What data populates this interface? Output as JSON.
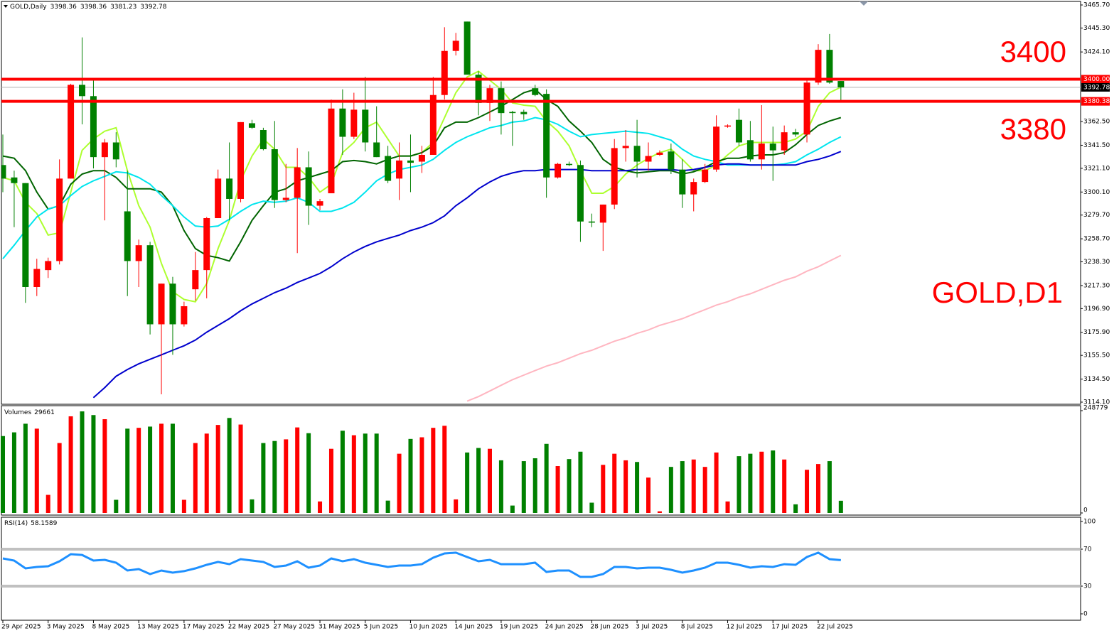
{
  "chart_data": [
    {
      "type": "candlestick",
      "title": "GOLD,Daily",
      "categories": [
        "29 Apr 2025",
        null,
        null,
        null,
        "3 May 2025",
        null,
        null,
        null,
        "8 May 2025",
        null,
        null,
        null,
        "13 May 2025",
        null,
        null,
        null,
        "17 May 2025",
        null,
        null,
        null,
        "22 May 2025",
        null,
        null,
        null,
        "27 May 2025",
        null,
        null,
        null,
        "31 May 2025",
        null,
        null,
        null,
        "5 Jun 2025",
        null,
        null,
        null,
        "10 Jun 2025",
        null,
        null,
        null,
        "14 Jun 2025",
        null,
        null,
        null,
        "19 Jun 2025",
        null,
        null,
        null,
        "24 Jun 2025",
        null,
        null,
        null,
        "28 Jun 2025",
        null,
        null,
        null,
        "3 Jul 2025",
        null,
        null,
        null,
        "8 Jul 2025",
        null,
        null,
        null,
        "12 Jul 2025",
        null,
        null,
        null,
        "17 Jul 2025",
        null,
        null,
        null,
        "22 Jul 2025",
        null,
        null
      ],
      "open": [
        3324,
        3313,
        3308,
        3216,
        3231,
        3239,
        3312,
        3395,
        3385,
        3331,
        3344,
        3283,
        3239,
        3253,
        3183,
        3219,
        3183,
        3214,
        3231,
        3277,
        3312,
        3294,
        3361,
        3355,
        3338,
        3293,
        3295,
        3322,
        3288,
        3299,
        3374,
        3349,
        3373,
        3344,
        3332,
        3312,
        3328,
        3327,
        3333,
        3386,
        3425,
        3451,
        3404,
        3379,
        3392,
        3371,
        3371,
        3392,
        3387,
        3313,
        3325,
        3324,
        3274,
        3273,
        3289,
        3339,
        3341,
        3327,
        3333,
        3336,
        3320,
        3298,
        3309,
        3320,
        3358,
        3364,
        3346,
        3329,
        3343,
        3337,
        3353,
        3351,
        3397,
        3426,
        3398.36
      ],
      "high": [
        3351,
        3319,
        3308,
        3241,
        3242,
        3329,
        3396,
        3437,
        3400,
        3347,
        3353,
        3319,
        3258,
        3256,
        3219,
        3225,
        3203,
        3247,
        3278,
        3320,
        3344,
        3362,
        3364,
        3357,
        3363,
        3325,
        3339,
        3336,
        3294,
        3382,
        3391,
        3388,
        3402,
        3376,
        3341,
        3344,
        3351,
        3341,
        3402,
        3446,
        3441,
        3451,
        3407,
        3395,
        3398,
        3372,
        3373,
        3395,
        3391,
        3326,
        3327,
        3328,
        3281,
        3289,
        3347,
        3355,
        3364,
        3344,
        3337,
        3343,
        3329,
        3312,
        3325,
        3368,
        3360,
        3374,
        3363,
        3377,
        3358,
        3359,
        3356,
        3400,
        3431,
        3440,
        3398.36
      ],
      "low": [
        3300,
        3269,
        3202,
        3208,
        3224,
        3236,
        3312,
        3360,
        3321,
        3275,
        3322,
        3208,
        3216,
        3174,
        3121,
        3156,
        3181,
        3204,
        3206,
        3277,
        3275,
        3291,
        3356,
        3337,
        3286,
        3291,
        3246,
        3271,
        3284,
        3299,
        3333,
        3347,
        3336,
        3331,
        3308,
        3293,
        3300,
        3317,
        3333,
        3382,
        3421,
        3404,
        3368,
        3363,
        3351,
        3341,
        3364,
        3385,
        3295,
        3312,
        3323,
        3256,
        3269,
        3248,
        3285,
        3327,
        3313,
        3319,
        3332,
        3316,
        3286,
        3283,
        3308,
        3318,
        3357,
        3341,
        3327,
        3320,
        3310,
        3333,
        3349,
        3344,
        3395,
        3396,
        3381.23
      ],
      "close": [
        3312,
        3308,
        3216,
        3232,
        3239,
        3312,
        3395,
        3385,
        3331,
        3344,
        3329,
        3239,
        3253,
        3183,
        3219,
        3183,
        3199,
        3231,
        3277,
        3312,
        3294,
        3362,
        3357,
        3338,
        3293,
        3295,
        3322,
        3288,
        3292,
        3374,
        3349,
        3373,
        3344,
        3331,
        3310,
        3328,
        3326,
        3333,
        3386,
        3425,
        3434,
        3404,
        3379,
        3392,
        3370,
        3370,
        3369,
        3386,
        3313,
        3325,
        3324,
        3274,
        3273,
        3289,
        3339,
        3341,
        3327,
        3332,
        3335,
        3320,
        3298,
        3309,
        3320,
        3358,
        3359,
        3344,
        3329,
        3343,
        3337,
        3353,
        3351,
        3397,
        3426,
        3397,
        3392.78
      ],
      "up_color": "#ff0000",
      "down_color": "#008000",
      "series": [
        {
          "color": "#adff2f",
          "values": [
            3313,
            3310,
            3291,
            3281,
            3262,
            3264,
            3300,
            3337,
            3347,
            3354,
            3357,
            3319,
            3288,
            3269,
            3237,
            3212,
            3205,
            3203,
            3219,
            3250,
            3275,
            3310,
            3332,
            3347,
            3338,
            3322,
            3322,
            3313,
            3300,
            3307,
            3335,
            3344,
            3357,
            3362,
            3347,
            3332,
            3332,
            3335,
            3344,
            3366,
            3388,
            3402,
            3407,
            3399,
            3391,
            3379,
            3377,
            3376,
            3363,
            3354,
            3341,
            3319,
            3299,
            3299,
            3305,
            3316,
            3324,
            3330,
            3335,
            3338,
            3329,
            3319,
            3319,
            3324,
            3333,
            3341,
            3344,
            3344,
            3344,
            3344,
            3347,
            3354,
            3376,
            3388,
            3393
          ]
        },
        {
          "color": "#006400",
          "values": [
            3332,
            3330,
            3319,
            3300,
            3285,
            3288,
            3307,
            3316,
            3319,
            3319,
            3313,
            3303,
            3303,
            3303,
            3300,
            3288,
            3266,
            3250,
            3244,
            3242,
            3239,
            3256,
            3275,
            3288,
            3300,
            3303,
            3310,
            3313,
            3316,
            3319,
            3327,
            3328,
            3327,
            3325,
            3329,
            3332,
            3332,
            3335,
            3341,
            3357,
            3362,
            3362,
            3366,
            3371,
            3376,
            3382,
            3388,
            3391,
            3382,
            3376,
            3363,
            3354,
            3344,
            3329,
            3322,
            3319,
            3317,
            3318,
            3319,
            3319,
            3316,
            3318,
            3322,
            3327,
            3330,
            3330,
            3332,
            3333,
            3333,
            3335,
            3342,
            3351,
            3359,
            3363,
            3366
          ]
        },
        {
          "color": "#00e5ee",
          "values": [
            3241,
            3253,
            3266,
            3278,
            3285,
            3288,
            3297,
            3305,
            3310,
            3314,
            3318,
            3317,
            3313,
            3307,
            3297,
            3288,
            3278,
            3270,
            3269,
            3270,
            3276,
            3283,
            3289,
            3292,
            3291,
            3292,
            3295,
            3291,
            3283,
            3283,
            3286,
            3291,
            3300,
            3310,
            3316,
            3320,
            3322,
            3324,
            3329,
            3337,
            3344,
            3349,
            3353,
            3357,
            3359,
            3362,
            3363,
            3366,
            3364,
            3360,
            3354,
            3349,
            3351,
            3352,
            3353,
            3354,
            3353,
            3352,
            3349,
            3346,
            3338,
            3332,
            3329,
            3327,
            3324,
            3324,
            3324,
            3324,
            3324,
            3325,
            3327,
            3333,
            3338,
            3344,
            3349
          ]
        },
        {
          "color": "#0000cd",
          "values": [
            null,
            null,
            null,
            null,
            null,
            null,
            null,
            null,
            3118,
            3127,
            3137,
            3143,
            3148,
            3152,
            3156,
            3160,
            3164,
            3169,
            3176,
            3182,
            3188,
            3195,
            3201,
            3206,
            3211,
            3215,
            3220,
            3224,
            3228,
            3234,
            3241,
            3247,
            3252,
            3256,
            3259,
            3262,
            3266,
            3269,
            3273,
            3279,
            3288,
            3295,
            3303,
            3309,
            3314,
            3317,
            3319,
            3319,
            3320,
            3320,
            3320,
            3320,
            3319,
            3319,
            3319,
            3319,
            3320,
            3320,
            3320,
            3320,
            3319,
            3320,
            3322,
            3324,
            3325,
            3325,
            3324,
            3324,
            3324,
            3324,
            3324,
            3327,
            3329,
            3332,
            3336
          ]
        },
        {
          "color": "#ffb6c1",
          "values": [
            null,
            null,
            null,
            null,
            null,
            null,
            null,
            null,
            null,
            null,
            null,
            null,
            null,
            null,
            null,
            null,
            null,
            null,
            null,
            null,
            null,
            null,
            null,
            null,
            null,
            null,
            null,
            null,
            null,
            null,
            null,
            null,
            null,
            null,
            null,
            null,
            null,
            null,
            null,
            null,
            null,
            3115,
            3119,
            3124,
            3129,
            3134,
            3138,
            3142,
            3146,
            3149,
            3153,
            3157,
            3160,
            3164,
            3168,
            3171,
            3175,
            3178,
            3182,
            3185,
            3188,
            3192,
            3196,
            3200,
            3203,
            3207,
            3210,
            3214,
            3218,
            3222,
            3225,
            3230,
            3234,
            3239,
            3244
          ]
        }
      ],
      "hlines": [
        {
          "value": 3400,
          "label": "3400.00"
        },
        {
          "value": 3380.38,
          "label": "3380.38"
        }
      ],
      "hline_color": "#ff0000",
      "annotations": [
        "3400",
        "3380",
        "GOLD,D1"
      ],
      "ylim": [
        3114.1,
        3465.7
      ],
      "yticks": [
        {
          "value": 3114.1,
          "label": "3114.10"
        },
        {
          "value": 3134.5,
          "label": "3134.50"
        },
        {
          "value": 3155.5,
          "label": "3155.50"
        },
        {
          "value": 3175.9,
          "label": "3175.90"
        },
        {
          "value": 3196.9,
          "label": "3196.90"
        },
        {
          "value": 3217.3,
          "label": "3217.30"
        },
        {
          "value": 3238.3,
          "label": "3238.30"
        },
        {
          "value": 3258.7,
          "label": "3258.70"
        },
        {
          "value": 3279.7,
          "label": "3279.70"
        },
        {
          "value": 3300.1,
          "label": "3300.10"
        },
        {
          "value": 3321.1,
          "label": "3321.10"
        },
        {
          "value": 3341.5,
          "label": "3341.50"
        },
        {
          "value": 3362.5,
          "label": "3362.50"
        },
        {
          "value": 3424.1,
          "label": "3424.10"
        },
        {
          "value": 3445.3,
          "label": "3445.30"
        },
        {
          "value": 3465.7,
          "label": "3465.70"
        }
      ]
    },
    {
      "type": "bar",
      "title": "Volumes",
      "values": [
        187000,
        196000,
        217000,
        205000,
        44000,
        170000,
        235000,
        247000,
        238000,
        228000,
        32000,
        205000,
        207000,
        210000,
        217000,
        217000,
        32000,
        170000,
        193000,
        214000,
        231000,
        215000,
        33000,
        170000,
        175000,
        179000,
        208000,
        194000,
        28000,
        156000,
        200000,
        189000,
        193000,
        193000,
        30000,
        144000,
        180000,
        184000,
        207000,
        212000,
        33000,
        147000,
        158000,
        156000,
        128000,
        18000,
        126000,
        133000,
        168000,
        114000,
        131000,
        149000,
        25000,
        117000,
        144000,
        128000,
        124000,
        86000,
        4000,
        112000,
        126000,
        130000,
        112000,
        147000,
        28000,
        138000,
        144000,
        149000,
        152000,
        130000,
        21000,
        105000,
        119000,
        126000,
        29661
      ],
      "ylim": [
        0,
        248779
      ],
      "yticks": [
        0,
        248779
      ]
    },
    {
      "type": "line",
      "title": "RSI(14)",
      "color": "#1e90ff",
      "values": [
        60.0,
        57.7,
        49.2,
        50.8,
        51.5,
        56.9,
        64.6,
        63.8,
        57.7,
        58.5,
        55.4,
        46.9,
        48.5,
        43.1,
        46.9,
        44.6,
        46.2,
        49.2,
        53.1,
        56.2,
        53.8,
        59.2,
        57.7,
        56.2,
        50.8,
        52.3,
        56.9,
        50.0,
        52.3,
        60.0,
        56.9,
        59.2,
        55.4,
        53.1,
        50.8,
        52.3,
        52.3,
        53.8,
        60.8,
        65.4,
        66.2,
        61.5,
        56.9,
        58.5,
        53.8,
        53.8,
        53.8,
        55.4,
        45.4,
        46.9,
        46.9,
        40.0,
        40.0,
        43.1,
        50.8,
        50.8,
        49.2,
        50.0,
        50.0,
        47.7,
        44.6,
        46.9,
        50.0,
        55.4,
        55.4,
        53.1,
        50.0,
        51.5,
        50.8,
        53.8,
        53.1,
        61.5,
        66.2,
        59.2,
        58.1589
      ],
      "levels": [
        70,
        30
      ],
      "level_color": "#c0c0c0",
      "ylim": [
        0,
        100
      ],
      "yticks": [
        0,
        30,
        70,
        100
      ]
    }
  ]
}
